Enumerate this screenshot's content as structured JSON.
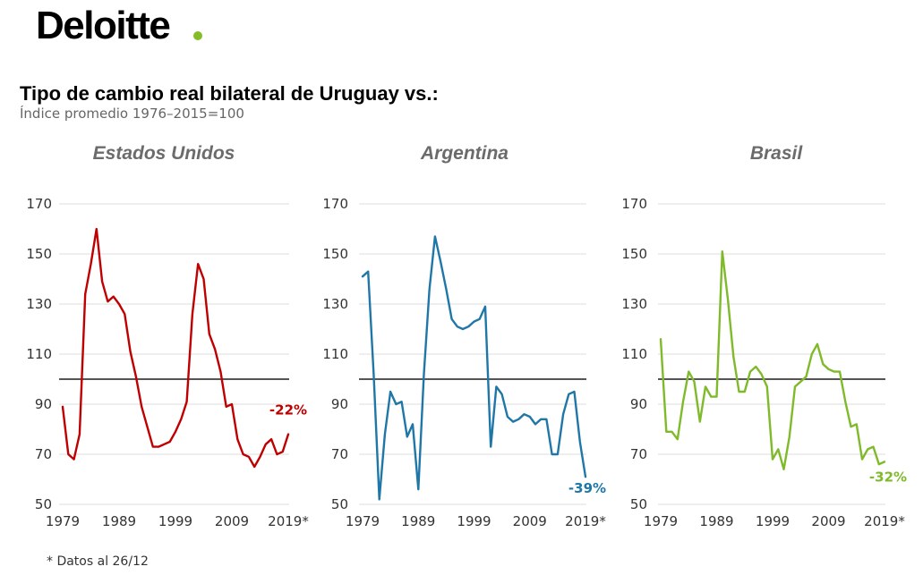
{
  "brand": {
    "name": "Deloitte",
    "dot_color": "#86BC25"
  },
  "title": "Tipo de cambio real bilateral de Uruguay vs.:",
  "subtitle": "Índice promedio 1976–2015=100",
  "footnote": "* Datos al 26/12",
  "chart_data": [
    {
      "type": "line",
      "title": "Estados Unidos",
      "color": "#C00000",
      "x": [
        1979,
        1980,
        1981,
        1982,
        1983,
        1984,
        1985,
        1986,
        1987,
        1988,
        1989,
        1990,
        1991,
        1992,
        1993,
        1994,
        1995,
        1996,
        1997,
        1998,
        1999,
        2000,
        2001,
        2002,
        2003,
        2004,
        2005,
        2006,
        2007,
        2008,
        2009,
        2010,
        2011,
        2012,
        2013,
        2014,
        2015,
        2016,
        2017,
        2018,
        2019
      ],
      "values": [
        89,
        70,
        68,
        78,
        134,
        146,
        160,
        139,
        131,
        133,
        130,
        126,
        111,
        101,
        89,
        81,
        73,
        73,
        74,
        75,
        79,
        84,
        91,
        126,
        146,
        140,
        118,
        112,
        103,
        89,
        90,
        76,
        70,
        69,
        65,
        69,
        74,
        76,
        70,
        71,
        78
      ],
      "end_label": "-22%",
      "ylim": [
        50,
        170
      ],
      "yticks": [
        "170",
        "150",
        "130",
        "110",
        "90",
        "70",
        "50"
      ],
      "xticks": [
        "1979",
        "1989",
        "1999",
        "2009",
        "2019*"
      ],
      "reference_line": 100
    },
    {
      "type": "line",
      "title": "Argentina",
      "color": "#1F77A8",
      "x": [
        1979,
        1980,
        1981,
        1982,
        1983,
        1984,
        1985,
        1986,
        1987,
        1988,
        1989,
        1990,
        1991,
        1992,
        1993,
        1994,
        1995,
        1996,
        1997,
        1998,
        1999,
        2000,
        2001,
        2002,
        2003,
        2004,
        2005,
        2006,
        2007,
        2008,
        2009,
        2010,
        2011,
        2012,
        2013,
        2014,
        2015,
        2016,
        2017,
        2018,
        2019
      ],
      "values": [
        141,
        143,
        102,
        52,
        78,
        95,
        90,
        91,
        77,
        82,
        56,
        102,
        136,
        157,
        147,
        136,
        124,
        121,
        120,
        121,
        123,
        124,
        129,
        73,
        97,
        94,
        85,
        83,
        84,
        86,
        85,
        82,
        84,
        84,
        70,
        70,
        86,
        94,
        95,
        75,
        61
      ],
      "end_label": "-39%",
      "ylim": [
        50,
        170
      ],
      "yticks": [
        "170",
        "150",
        "130",
        "110",
        "90",
        "70",
        "50"
      ],
      "xticks": [
        "1979",
        "1989",
        "1999",
        "2009",
        "2019*"
      ],
      "reference_line": 100
    },
    {
      "type": "line",
      "title": "Brasil",
      "color": "#7FBA2A",
      "x": [
        1979,
        1980,
        1981,
        1982,
        1983,
        1984,
        1985,
        1986,
        1987,
        1988,
        1989,
        1990,
        1991,
        1992,
        1993,
        1994,
        1995,
        1996,
        1997,
        1998,
        1999,
        2000,
        2001,
        2002,
        2003,
        2004,
        2005,
        2006,
        2007,
        2008,
        2009,
        2010,
        2011,
        2012,
        2013,
        2014,
        2015,
        2016,
        2017,
        2018,
        2019
      ],
      "values": [
        116,
        79,
        79,
        76,
        91,
        103,
        99,
        83,
        97,
        93,
        93,
        151,
        132,
        109,
        95,
        95,
        103,
        105,
        102,
        97,
        68,
        72,
        64,
        77,
        97,
        99,
        101,
        110,
        114,
        106,
        104,
        103,
        103,
        91,
        81,
        82,
        68,
        72,
        73,
        66,
        67
      ],
      "end_label": "-32%",
      "ylim": [
        50,
        170
      ],
      "yticks": [
        "170",
        "150",
        "130",
        "110",
        "90",
        "70",
        "50"
      ],
      "xticks": [
        "1979",
        "1989",
        "1999",
        "2009",
        "2019*"
      ],
      "reference_line": 100
    }
  ]
}
